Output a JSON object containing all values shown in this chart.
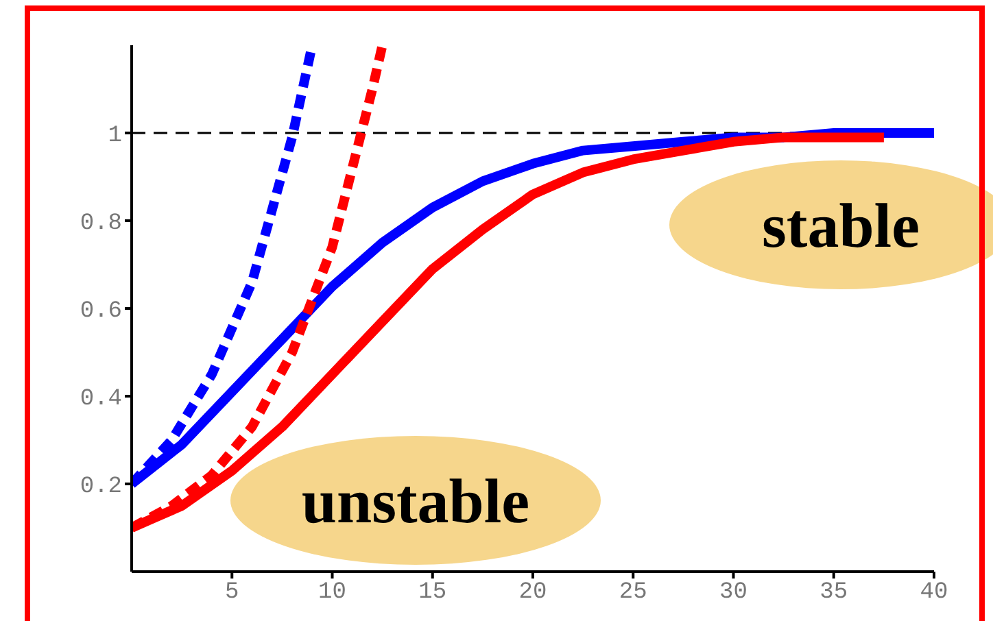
{
  "chart_data": {
    "type": "line",
    "xlim": [
      0,
      40
    ],
    "xticks": [
      5,
      10,
      15,
      20,
      25,
      30,
      35,
      40
    ],
    "ylim": [
      0,
      1.2
    ],
    "yticks": [
      0.2,
      0.4,
      0.6,
      0.8,
      1
    ],
    "grid": false,
    "marker": "none",
    "series": [
      {
        "color": "#0000ff",
        "line_style": "solid",
        "x": [
          0,
          2.5,
          5,
          7.5,
          10,
          12.5,
          15,
          17.5,
          20,
          22.5,
          25,
          27.5,
          30,
          32.5,
          35,
          37.5,
          40
        ],
        "values": [
          0.2,
          0.29,
          0.41,
          0.53,
          0.65,
          0.75,
          0.83,
          0.89,
          0.93,
          0.96,
          0.97,
          0.98,
          0.99,
          0.99,
          1,
          1,
          1
        ]
      },
      {
        "color": "#ff0000",
        "line_style": "solid",
        "x": [
          0,
          2.5,
          5,
          7.5,
          10,
          12.5,
          15,
          17.5,
          20,
          22.5,
          25,
          27.5,
          30,
          32.5,
          35,
          37.5
        ],
        "values": [
          0.1,
          0.15,
          0.23,
          0.33,
          0.45,
          0.57,
          0.69,
          0.78,
          0.86,
          0.91,
          0.94,
          0.96,
          0.98,
          0.99,
          0.99,
          0.99
        ]
      },
      {
        "color": "#0000ff",
        "line_style": "dashed",
        "x": [
          0,
          2,
          4,
          6,
          8,
          9
        ],
        "values": [
          0.2,
          0.3,
          0.45,
          0.66,
          0.99,
          1.2
        ]
      },
      {
        "color": "#ff0000",
        "line_style": "dashed",
        "x": [
          0,
          2,
          4,
          6,
          8,
          10,
          12,
          12.5
        ],
        "values": [
          0.1,
          0.15,
          0.22,
          0.33,
          0.5,
          0.74,
          1.1,
          1.2
        ]
      }
    ],
    "ref_lines": [
      {
        "axis": "y",
        "value": 1,
        "color": "#000000",
        "line_style": "dashed"
      }
    ],
    "annotations": [
      "stable",
      "unstable"
    ]
  }
}
